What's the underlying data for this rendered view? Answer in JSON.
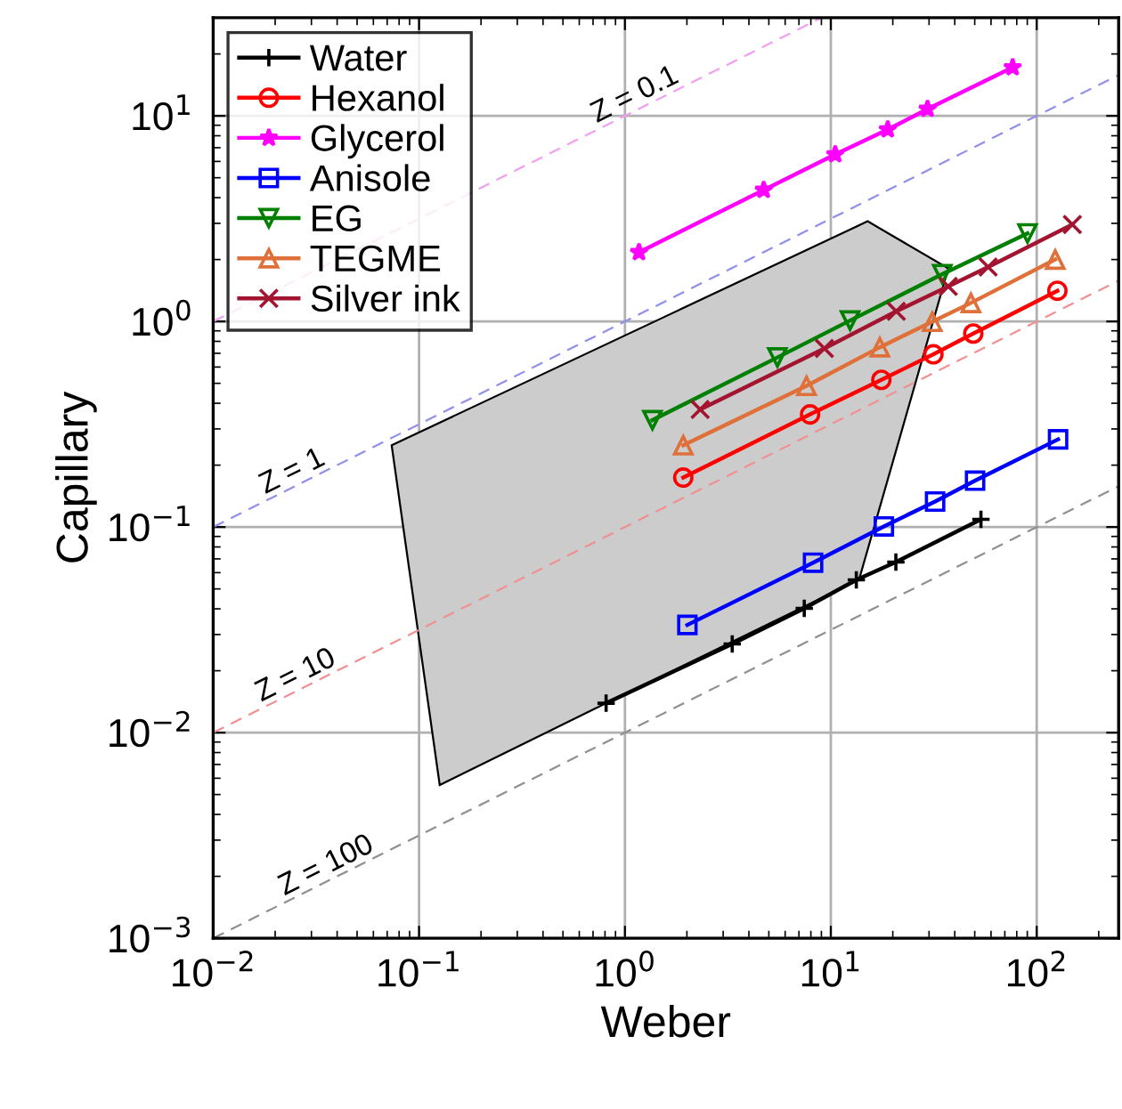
{
  "chart_data": {
    "type": "line",
    "xlabel": "Weber",
    "ylabel": "Capillary",
    "log": "xy",
    "grid": true,
    "legend": "top left",
    "xlim": [
      0.01,
      250
    ],
    "ylim": [
      0.001,
      30
    ],
    "xticks": [
      {
        "value": 0.01,
        "label": "10$^{−2}$"
      },
      {
        "value": 0.1,
        "label": "10$^{−1}$"
      },
      {
        "value": 1,
        "label": "10$^{0}$"
      },
      {
        "value": 10,
        "label": "10$^{1}$"
      },
      {
        "value": 100,
        "label": "10$^{2}$"
      }
    ],
    "yticks": [
      {
        "value": 0.001,
        "label": "10$^{−3}$"
      },
      {
        "value": 0.01,
        "label": "10$^{−2}$"
      },
      {
        "value": 0.1,
        "label": "10$^{−1}$"
      },
      {
        "value": 1,
        "label": "10$^{0}$"
      },
      {
        "value": 10,
        "label": "10$^{1}$"
      }
    ],
    "series": [
      {
        "type": "area",
        "color": "#cccccc",
        "x": [
          0.0736,
          15.1,
          37.2,
          13.7,
          0.81,
          0.126
        ],
        "values": [
          0.25,
          3.07,
          1.81,
          0.0553,
          0.0139,
          0.00556
        ]
      },
      {
        "type": "line",
        "line_style": "dashed",
        "marker": "none",
        "color": "#f0a0f0",
        "x": [
          0.01,
          9
        ],
        "values": [
          1,
          30
        ]
      },
      {
        "type": "line",
        "line_style": "dashed",
        "marker": "none",
        "color": "#9090e8",
        "x": [
          0.01,
          250
        ],
        "values": [
          0.1,
          15.8
        ]
      },
      {
        "type": "line",
        "line_style": "dashed",
        "marker": "none",
        "color": "#f09090",
        "x": [
          0.01,
          250
        ],
        "values": [
          0.01,
          1.58
        ]
      },
      {
        "type": "line",
        "line_style": "dashed",
        "marker": "none",
        "color": "#909090",
        "x": [
          0.01,
          250
        ],
        "values": [
          0.001,
          0.158
        ]
      },
      {
        "name": "Water",
        "color": "#000000",
        "marker": "plus",
        "x": [
          0.81,
          3.32,
          7.43,
          13.3,
          20.7,
          53.6
        ],
        "values": [
          0.0139,
          0.027,
          0.0402,
          0.0553,
          0.0675,
          0.109
        ]
      },
      {
        "name": "Hexanol",
        "color": "#ff0000",
        "marker": "circle",
        "x": [
          1.92,
          7.93,
          17.6,
          31.5,
          49.2,
          126
        ],
        "values": [
          0.174,
          0.353,
          0.52,
          0.692,
          0.873,
          1.41
        ]
      },
      {
        "name": "Glycerol",
        "color": "#ff00ff",
        "marker": "star",
        "x": [
          1.17,
          4.72,
          10.5,
          18.9,
          29.5,
          76.4
        ],
        "values": [
          2.17,
          4.36,
          6.49,
          8.58,
          10.8,
          17.2
        ]
      },
      {
        "name": "Anisole",
        "color": "#0000ff",
        "marker": "square",
        "x": [
          2.01,
          8.2,
          18.1,
          32.1,
          50.2,
          127
        ],
        "values": [
          0.0334,
          0.0671,
          0.1007,
          0.133,
          0.168,
          0.267
        ]
      },
      {
        "name": "EG",
        "color": "#008000",
        "marker": "triangle_down",
        "x": [
          1.36,
          5.5,
          12.4,
          34.8,
          90.2
        ],
        "values": [
          0.331,
          0.668,
          1.01,
          1.7,
          2.68
        ]
      },
      {
        "name": "TEGME",
        "color": "#e0703a",
        "marker": "triangle",
        "x": [
          1.92,
          7.62,
          17.3,
          31.1,
          47.9,
          123
        ],
        "values": [
          0.25,
          0.486,
          0.749,
          0.996,
          1.23,
          2.0
        ]
      },
      {
        "name": "Silver ink",
        "color": "#a2142f",
        "marker": "cross",
        "x": [
          2.32,
          9.31,
          20.8,
          37.2,
          58.1,
          149
        ],
        "values": [
          0.373,
          0.739,
          1.12,
          1.48,
          1.84,
          2.96
        ]
      }
    ],
    "annotations": [
      {
        "text": "Z = 0.1",
        "x": 1.2,
        "y": 10.95
      },
      {
        "text": "Z = 1",
        "x": 0.026,
        "y": 0.161
      },
      {
        "text": "Z = 10",
        "x": 0.027,
        "y": 0.0164
      },
      {
        "text": "Z = 100",
        "x": 0.038,
        "y": 0.00195
      }
    ]
  }
}
